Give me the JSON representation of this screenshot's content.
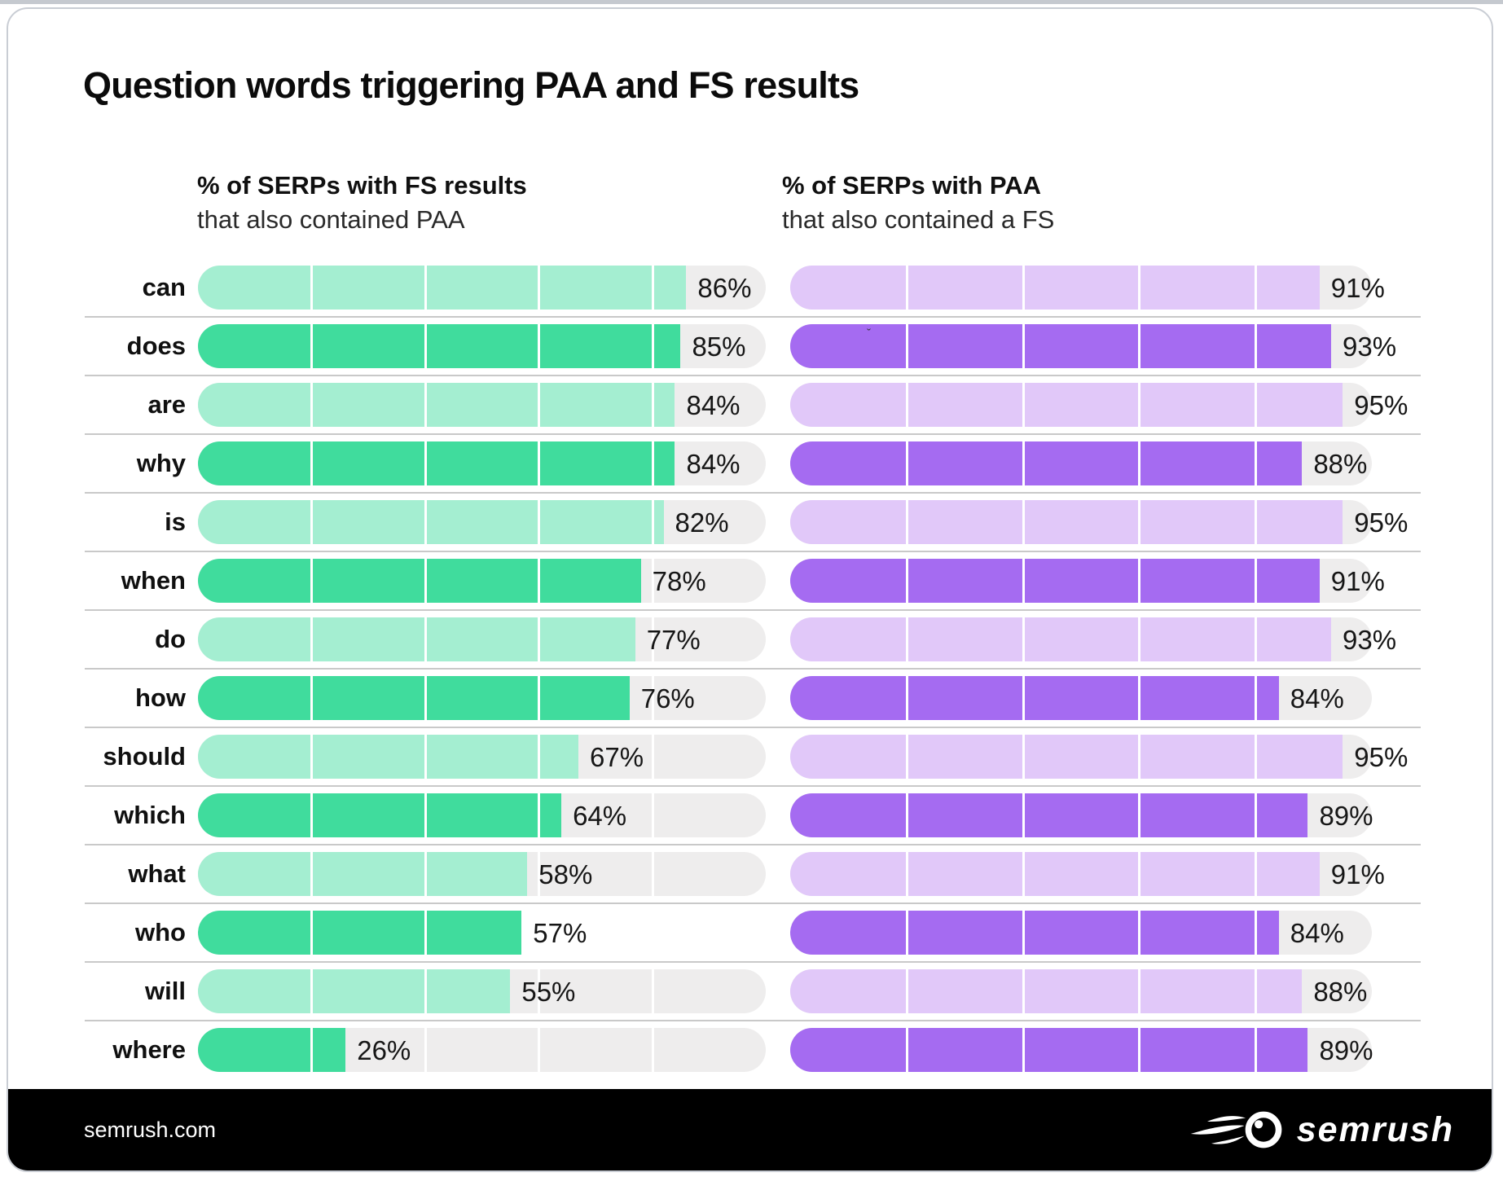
{
  "title": "Question words triggering PAA and FS results",
  "columns": {
    "left": {
      "heading": "% of SERPs with FS results",
      "subheading": "that also contained PAA"
    },
    "right": {
      "heading": "% of SERPs with PAA",
      "subheading": "that also contained a FS"
    }
  },
  "chart_data": {
    "type": "bar",
    "orientation": "horizontal",
    "value_suffix": "%",
    "xlim": [
      0,
      100
    ],
    "segment_dividers": [
      20,
      40,
      60,
      80
    ],
    "categories": [
      "can",
      "does",
      "are",
      "why",
      "is",
      "when",
      "do",
      "how",
      "should",
      "which",
      "what",
      "who",
      "will",
      "where"
    ],
    "series": [
      {
        "name": "% of SERPs with FS results that also contained PAA",
        "values": [
          86,
          85,
          84,
          84,
          82,
          78,
          77,
          76,
          67,
          64,
          58,
          57,
          55,
          26
        ],
        "fill_colors_alternating": [
          "#A4EED1",
          "#40DC9D"
        ],
        "track_color": "#EEEDED",
        "rows_without_track": [
          "who"
        ]
      },
      {
        "name": "% of SERPs with PAA that also contained a FS",
        "values": [
          91,
          93,
          95,
          88,
          95,
          91,
          93,
          84,
          95,
          89,
          91,
          84,
          88,
          89
        ],
        "fill_colors_alternating": [
          "#E1C8F9",
          "#A56BF1"
        ],
        "track_color": "#EEEDED",
        "rows_without_track": []
      }
    ],
    "legend_position": "none",
    "grid": "segment-dividers-every-20pct"
  },
  "stray_mark": "ˇ",
  "footer": {
    "site": "semrush.com",
    "logo_text": "semrush"
  },
  "colors": {
    "accent_green": "#40DC9D",
    "accent_green_light": "#A4EED1",
    "accent_purple": "#A56BF1",
    "accent_purple_light": "#E1C8F9",
    "track": "#EEEDED",
    "separator": "#C9C9C9",
    "footer_bg": "#000000",
    "top_strip": "#C5C9CF",
    "card_border": "#C9CDD4",
    "text": "#101010"
  }
}
